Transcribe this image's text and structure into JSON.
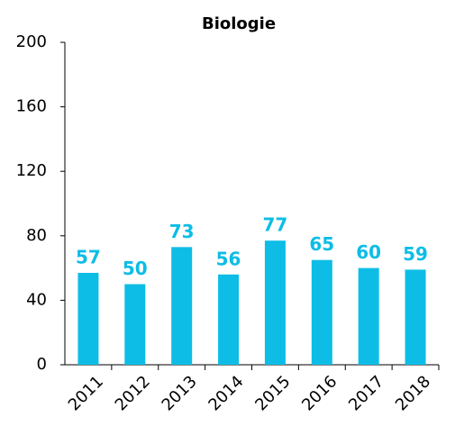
{
  "chart_data": {
    "type": "bar",
    "title": "Biologie",
    "categories": [
      "2011",
      "2012",
      "2013",
      "2014",
      "2015",
      "2016",
      "2017",
      "2018"
    ],
    "values": [
      57,
      50,
      73,
      56,
      77,
      65,
      60,
      59
    ],
    "color": "#0dbde6",
    "ylim": [
      0,
      200
    ],
    "yticks": [
      0,
      40,
      80,
      120,
      160,
      200
    ],
    "grid": false
  }
}
